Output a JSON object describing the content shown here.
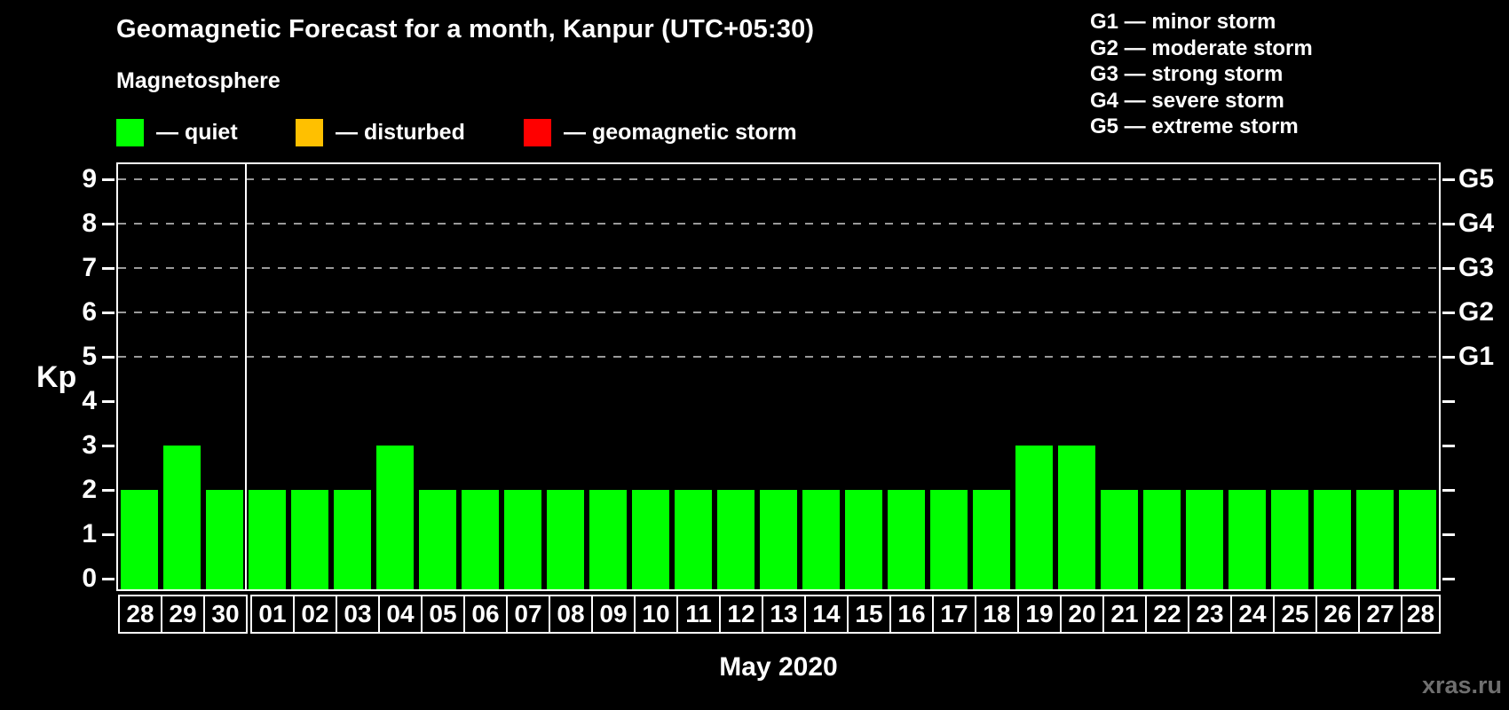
{
  "title": "Geomagnetic Forecast for a month, Kanpur (UTC+05:30)",
  "legend": {
    "heading": "Magnetosphere",
    "items": [
      {
        "name": "quiet",
        "label": "— quiet",
        "color": "#00ff00"
      },
      {
        "name": "disturbed",
        "label": "— disturbed",
        "color": "#ffc000"
      },
      {
        "name": "geomagnetic-storm",
        "label": "— geomagnetic storm",
        "color": "#ff0000"
      }
    ]
  },
  "storm_scale_legend": [
    "G1 — minor storm",
    "G2 — moderate storm",
    "G3 — strong storm",
    "G4 — severe storm",
    "G5 — extreme storm"
  ],
  "watermark": "xras.ru",
  "chart_data": {
    "type": "bar",
    "title": "Geomagnetic Forecast for a month, Kanpur (UTC+05:30)",
    "xlabel": "May 2020",
    "ylabel": "Kp",
    "month_label": "May 2020",
    "categories": [
      "28",
      "29",
      "30",
      "01",
      "02",
      "03",
      "04",
      "05",
      "06",
      "07",
      "08",
      "09",
      "10",
      "11",
      "12",
      "13",
      "14",
      "15",
      "16",
      "17",
      "18",
      "19",
      "20",
      "21",
      "22",
      "23",
      "24",
      "25",
      "26",
      "27",
      "28"
    ],
    "values": [
      2,
      3,
      2,
      2,
      2,
      2,
      3,
      2,
      2,
      2,
      2,
      2,
      2,
      2,
      2,
      2,
      2,
      2,
      2,
      2,
      2,
      3,
      3,
      2,
      2,
      2,
      2,
      2,
      2,
      2,
      2
    ],
    "bar_color": "#00ff00",
    "ylim": [
      0,
      9.4
    ],
    "y_ticks": [
      0,
      1,
      2,
      3,
      4,
      5,
      6,
      7,
      8,
      9
    ],
    "right_axis_labels": [
      {
        "value": 5,
        "label": "G1"
      },
      {
        "value": 6,
        "label": "G2"
      },
      {
        "value": 7,
        "label": "G3"
      },
      {
        "value": 8,
        "label": "G4"
      },
      {
        "value": 9,
        "label": "G5"
      }
    ],
    "gridlines_at": [
      5,
      6,
      7,
      8,
      9
    ],
    "grid": "dashed horizontal lines at storm levels",
    "legend_position": "top",
    "month_separator_after_index": 2
  }
}
